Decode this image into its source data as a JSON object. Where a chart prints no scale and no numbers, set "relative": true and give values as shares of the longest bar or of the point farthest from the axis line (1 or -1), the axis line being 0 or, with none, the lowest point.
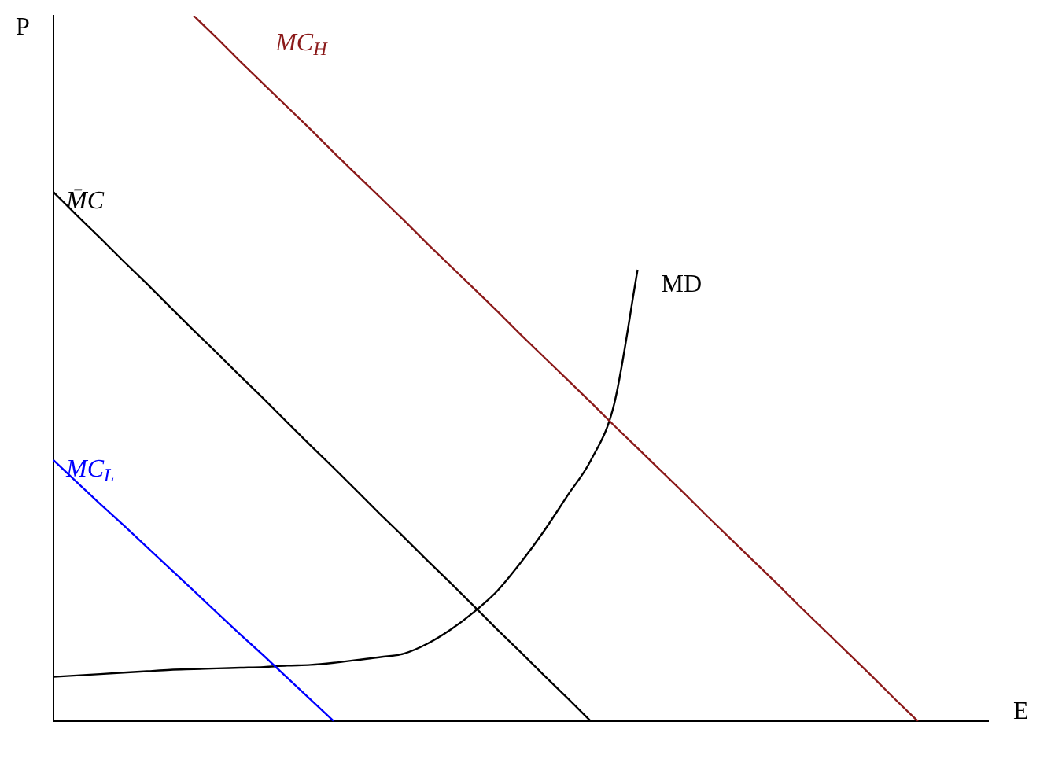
{
  "chart_data": {
    "type": "line",
    "relative": true,
    "xlabel": "E",
    "ylabel": "P",
    "legend": false,
    "grid": false,
    "marker": "none",
    "categories": [
      null,
      null,
      null,
      null,
      null,
      null,
      null,
      null,
      null,
      null,
      null,
      null,
      null,
      null,
      null,
      null,
      null,
      null,
      null,
      null,
      null,
      null,
      null,
      null,
      null,
      null,
      null,
      null,
      null,
      null,
      null,
      null,
      null,
      null,
      null,
      null,
      null,
      null,
      null,
      null,
      null
    ],
    "series": [
      {
        "name": "MC$_{H}$",
        "color": "#8b1a1a",
        "values": [
          null,
          null,
          null,
          null,
          null,
          null,
          1,
          0.968,
          0.935,
          0.903,
          0.871,
          0.839,
          0.806,
          0.774,
          0.742,
          0.71,
          0.677,
          0.645,
          0.613,
          0.581,
          0.548,
          0.516,
          0.484,
          0.452,
          0.419,
          0.387,
          0.355,
          0.323,
          0.29,
          0.258,
          0.226,
          0.194,
          0.161,
          0.129,
          0.097,
          0.065,
          0.032,
          0,
          null,
          null,
          null
        ]
      },
      {
        "name": "M̄C",
        "color": "#000000",
        "values": [
          0.75,
          0.717,
          0.685,
          0.652,
          0.62,
          0.587,
          0.554,
          0.522,
          0.489,
          0.457,
          0.424,
          0.391,
          0.359,
          0.326,
          0.293,
          0.261,
          0.228,
          0.196,
          0.163,
          0.13,
          0.098,
          0.065,
          0.033,
          0,
          null,
          null,
          null,
          null,
          null,
          null,
          null,
          null,
          null,
          null,
          null,
          null,
          null,
          null,
          null,
          null,
          null
        ]
      },
      {
        "name": "MC$_{L}$",
        "color": "#0000ff",
        "values": [
          0.37,
          0.339,
          0.308,
          0.278,
          0.247,
          0.216,
          0.185,
          0.154,
          0.123,
          0.093,
          0.062,
          0.031,
          0,
          null,
          null,
          null,
          null,
          null,
          null,
          null,
          null,
          null,
          null,
          null,
          null,
          null,
          null,
          null,
          null,
          null,
          null,
          null,
          null,
          null,
          null,
          null,
          null,
          null,
          null,
          null,
          null
        ]
      },
      {
        "name": "MD",
        "color": "#000000",
        "values": [
          0.063,
          0.065,
          0.067,
          0.069,
          0.071,
          0.073,
          0.074,
          0.075,
          0.076,
          0.077,
          0.079,
          0.08,
          0.083,
          0.087,
          0.091,
          0.096,
          0.11,
          0.13,
          0.155,
          0.185,
          0.225,
          0.27,
          0.32,
          0.37,
          0.45,
          0.64,
          null,
          null,
          null,
          null,
          null,
          null,
          null,
          null,
          null,
          null,
          null,
          null,
          null,
          null,
          null
        ]
      }
    ]
  }
}
